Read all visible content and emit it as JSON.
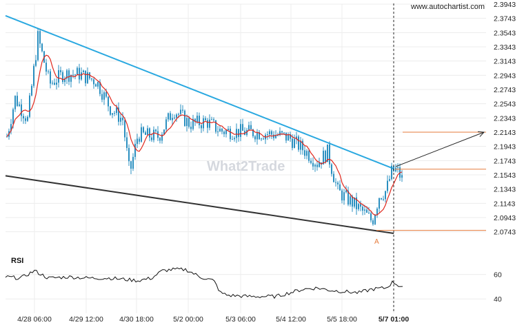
{
  "site_label": "www.autochartist.com",
  "watermark": "What2Trade",
  "chart_data": {
    "type": "candlestick",
    "y_ticks": [
      "2.3943",
      "2.3743",
      "2.3543",
      "2.3343",
      "2.3143",
      "2.2943",
      "2.2743",
      "2.2543",
      "2.2343",
      "2.2143",
      "2.1943",
      "2.1743",
      "2.1543",
      "2.1343",
      "2.1143",
      "2.0943",
      "2.0743"
    ],
    "x_ticks": [
      "4/28 06:00",
      "4/29 12:00",
      "4/30 18:00",
      "5/2 00:00",
      "5/3 06:00",
      "5/4 12:00",
      "5/5 18:00",
      "5/7 01:00"
    ],
    "ylim": [
      2.0643,
      2.3943
    ],
    "pattern_point_label": "A",
    "upper_trendline": {
      "from": 2.378,
      "to": 2.163
    },
    "lower_trendline": {
      "from": 2.153,
      "to": 2.072
    },
    "level_lines": [
      2.2143,
      2.1623,
      2.0763
    ],
    "projection": {
      "from": 2.166,
      "to": 2.2143
    },
    "rsi": {
      "label": "RSI",
      "ticks": [
        "60",
        "40"
      ],
      "ylim": [
        30,
        75
      ]
    },
    "colors": {
      "upper_trend": "#29a8e0",
      "lower_trend": "#333333",
      "ma": "#e0261b",
      "candle": "#2a8fc0",
      "level": "#e57a3a",
      "projection": "#222222"
    }
  }
}
